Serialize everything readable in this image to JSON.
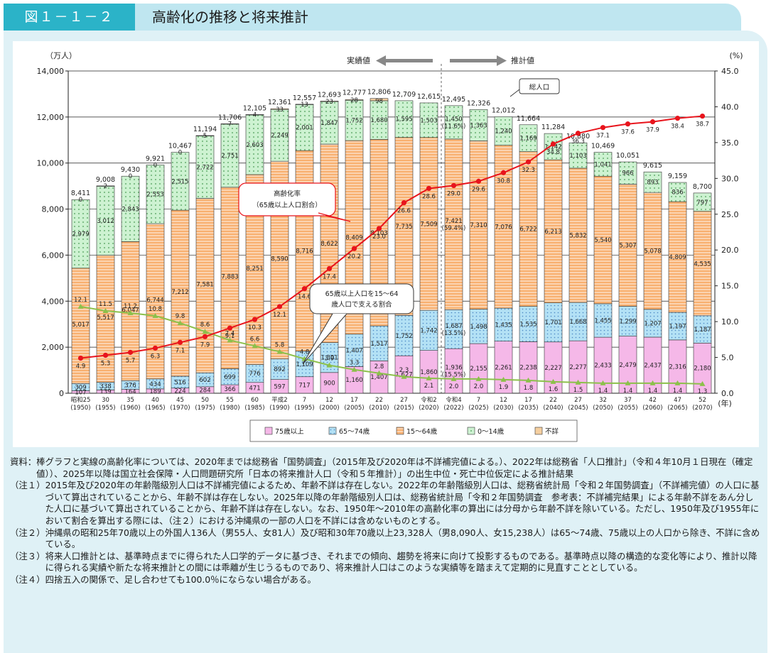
{
  "header": {
    "figure_label": "図１－１－２",
    "title": "高齢化の推移と将来推計"
  },
  "chart_data": {
    "type": "bar",
    "title": "高齢化の推移と将来推計",
    "y_left_unit": "（万人）",
    "y_right_unit": "(%)",
    "x_unit": "(年)",
    "ylim_left": [
      0,
      14000
    ],
    "ylim_right": [
      0,
      45
    ],
    "yticks_left": [
      "0",
      "2,000",
      "4,000",
      "6,000",
      "8,000",
      "10,000",
      "12,000",
      "14,000"
    ],
    "yticks_right": [
      "0.0",
      "5.0",
      "10.0",
      "15.0",
      "20.0",
      "25.0",
      "30.0",
      "35.0",
      "40.0",
      "45.0"
    ],
    "categories_era": [
      "昭和25",
      "30",
      "35",
      "40",
      "45",
      "50",
      "55",
      "60",
      "平成2",
      "7",
      "12",
      "17",
      "22",
      "27",
      "令和2",
      "令和4",
      "7",
      "12",
      "17",
      "22",
      "27",
      "32",
      "37",
      "42",
      "47",
      "52"
    ],
    "categories_year": [
      "(1950)",
      "(1955)",
      "(1960)",
      "(1965)",
      "(1970)",
      "(1975)",
      "(1980)",
      "(1985)",
      "(1990)",
      "(1995)",
      "(2000)",
      "(2005)",
      "(2010)",
      "(2015)",
      "(2020)",
      "(2022)",
      "(2025)",
      "(2030)",
      "(2035)",
      "(2040)",
      "(2045)",
      "(2050)",
      "(2055)",
      "(2060)",
      "(2065)",
      "(2070)"
    ],
    "stack_order": [
      "75歳以上",
      "65～74歳",
      "15～64歳",
      "0～14歳",
      "不詳"
    ],
    "series": [
      {
        "name": "75歳以上",
        "color": "#f5b8e8",
        "values": [
          107,
          139,
          164,
          189,
          224,
          284,
          366,
          471,
          597,
          717,
          900,
          1160,
          1407,
          1627,
          1860,
          1936,
          2155,
          2261,
          2238,
          2227,
          2277,
          2433,
          2479,
          2437,
          2316,
          2180
        ],
        "labels": [
          "107",
          "139",
          "164",
          "189",
          "224",
          "284",
          "366",
          "471",
          "597",
          "717",
          "900",
          "1,160",
          "1,407",
          "1,627",
          "1,860",
          "1,936\n(15.5%)",
          "2,155",
          "2,261",
          "2,238",
          "2,227",
          "2,277",
          "2,433",
          "2,479",
          "2,437",
          "2,316",
          "2,180"
        ]
      },
      {
        "name": "65～74歳",
        "color": "#a9dcf2",
        "values": [
          309,
          338,
          376,
          434,
          516,
          602,
          699,
          776,
          892,
          1109,
          1301,
          1407,
          1517,
          1752,
          1742,
          1687,
          1498,
          1435,
          1535,
          1701,
          1668,
          1455,
          1299,
          1207,
          1197,
          1187
        ],
        "labels": [
          "309",
          "338",
          "376",
          "434",
          "516",
          "602",
          "699",
          "776",
          "892",
          "1,109",
          "1,301",
          "1,407",
          "1,517",
          "1,752",
          "1,742",
          "1,687\n(13.5%)",
          "1,498",
          "1,435",
          "1,535",
          "1,701",
          "1,668",
          "1,455",
          "1,299",
          "1,207",
          "1,197",
          "1,187"
        ]
      },
      {
        "name": "15～64歳",
        "color": "#f7ad6c",
        "values": [
          5017,
          5517,
          6047,
          6744,
          7212,
          7581,
          7883,
          8251,
          8590,
          8716,
          8622,
          8409,
          8103,
          7735,
          7509,
          7421,
          7310,
          7076,
          6722,
          6213,
          5832,
          5540,
          5307,
          5078,
          4809,
          4535
        ],
        "labels": [
          "5,017",
          "5,517",
          "6,047",
          "6,744",
          "7,212",
          "7,581",
          "7,883",
          "8,251",
          "8,590",
          "8,716",
          "8,622",
          "8,409",
          "8,103",
          "7,735",
          "7,509",
          "7,421\n(59.4%)",
          "7,310",
          "7,076",
          "6,722",
          "6,213",
          "5,832",
          "5,540",
          "5,307",
          "5,078",
          "4,809",
          "4,535"
        ]
      },
      {
        "name": "0～14歳",
        "color": "#c8f0cc",
        "values": [
          2979,
          3012,
          2843,
          2553,
          2515,
          2722,
          2751,
          2603,
          2249,
          2001,
          1847,
          1752,
          1680,
          1595,
          1503,
          1450,
          1363,
          1240,
          1169,
          1142,
          1103,
          1041,
          966,
          893,
          836,
          797
        ],
        "labels": [
          "2,979",
          "3,012",
          "2,843",
          "2,553",
          "2,515",
          "2,722",
          "2,751",
          "2,603",
          "2,249",
          "2,001",
          "1,847",
          "1,752",
          "1,680",
          "1,595",
          "1,503",
          "1,450\n(11.6%)",
          "1,363",
          "1,240",
          "1,169",
          "1,142",
          "1,103",
          "1,041",
          "966",
          "893",
          "836",
          "797"
        ]
      },
      {
        "name": "不詳",
        "color": "#f5cfa0",
        "values": [
          0,
          2,
          0,
          0,
          0,
          5,
          7,
          4,
          33,
          13,
          23,
          28,
          98,
          0,
          0,
          0,
          0,
          0,
          0,
          0,
          0,
          0,
          0,
          0,
          0,
          0
        ],
        "labels": [
          "0",
          "2",
          "0",
          "0",
          "0",
          "5",
          "7",
          "4",
          "33",
          "13",
          "23",
          "28",
          "98",
          "",
          "",
          "",
          "",
          "",
          "",
          "",
          "",
          "",
          "",
          "",
          "",
          ""
        ]
      }
    ],
    "totals": [
      8411,
      9008,
      9430,
      9921,
      10467,
      11194,
      11706,
      12105,
      12361,
      12557,
      12693,
      12777,
      12806,
      12709,
      12615,
      12495,
      12326,
      12012,
      11664,
      11284,
      10880,
      10469,
      10051,
      9615,
      9159,
      8700
    ],
    "totals_labels": [
      "8,411",
      "9,008",
      "9,430",
      "9,921",
      "10,467",
      "11,194",
      "11,706",
      "12,105",
      "12,361",
      "12,557",
      "12,693",
      "12,777",
      "12,806",
      "12,709",
      "12,615",
      "12,495",
      "12,326",
      "12,012",
      "11,664",
      "11,284",
      "10,880",
      "10,469",
      "10,051",
      "9,615",
      "9,159",
      "8,700"
    ],
    "aging_rate": {
      "color": "#e8141c",
      "values": [
        4.9,
        5.3,
        5.7,
        6.3,
        7.1,
        7.9,
        9.1,
        10.3,
        12.1,
        14.6,
        17.4,
        20.2,
        23.0,
        26.6,
        28.6,
        29.0,
        29.6,
        30.8,
        32.3,
        34.8,
        36.3,
        37.1,
        37.6,
        37.9,
        38.4,
        38.7
      ],
      "labels": [
        "4.9",
        "5.3",
        "5.7",
        "6.3",
        "7.1",
        "7.9",
        "9.1",
        "10.3",
        "12.1",
        "14.6",
        "17.4",
        "20.2",
        "23.0",
        "26.6",
        "28.6",
        "29.0",
        "29.6",
        "30.8",
        "32.3",
        "34.8",
        "36.3",
        "37.1",
        "37.6",
        "37.9",
        "38.4",
        "38.7"
      ]
    },
    "support_ratio": {
      "color": "#8cc04b",
      "values": [
        12.1,
        11.5,
        11.2,
        10.8,
        9.8,
        8.6,
        7.4,
        6.6,
        5.8,
        4.8,
        3.9,
        3.3,
        2.8,
        2.3,
        2.1,
        2.0,
        2.0,
        1.9,
        1.8,
        1.6,
        1.5,
        1.4,
        1.4,
        1.4,
        1.4,
        1.3
      ],
      "labels": [
        "12.1",
        "11.5",
        "11.2",
        "10.8",
        "9.8",
        "8.6",
        "7.4",
        "6.6",
        "5.8",
        "4.8",
        "3.9",
        "3.3",
        "2.8",
        "2.3",
        "2.1",
        "2.0",
        "2.0",
        "1.9",
        "1.8",
        "1.6",
        "1.5",
        "1.4",
        "1.4",
        "1.4",
        "1.4",
        "1.3"
      ]
    },
    "annotations": {
      "actual": "実績値",
      "projection": "推計値",
      "total_population": "総人口",
      "aging_rate_label": [
        "高齢化率",
        "（65歳以上人口割合）"
      ],
      "support_label": [
        "65歳以上人口を15～64",
        "歳人口で支える割合"
      ]
    },
    "legend": [
      "75歳以上",
      "65～74歳",
      "15～64歳",
      "0～14歳",
      "不詳"
    ],
    "legend_position": "bottom-center",
    "grid": true
  },
  "notes": [
    {
      "label": "資料：",
      "text": "棒グラフと実線の高齢化率については、2020年までは総務省「国勢調査」（2015年及び2020年は不詳補完値による。）、2022年は総務省「人口推計」（令和４年10月１日現在（確定値））、2025年以降は国立社会保障・人口問題研究所「日本の将来推計人口（令和５年推計）」の出生中位・死亡中位仮定による推計結果"
    },
    {
      "label": "（注１）",
      "text": "2015年及び2020年の年齢階級別人口は不詳補完値によるため、年齢不詳は存在しない。2022年の年齢階級別人口は、総務省統計局「令和２年国勢調査」（不詳補完値）の人口に基づいて算出されていることから、年齢不詳は存在しない。2025年以降の年齢階級別人口は、総務省統計局「令和２年国勢調査　参考表：不詳補完結果」による年齢不詳をあん分した人口に基づいて算出されていることから、年齢不詳は存在しない。なお、1950年～2010年の高齢化率の算出には分母から年齢不詳を除いている。ただし、1950年及び1955年において割合を算出する際には、（注２）における沖縄県の一部の人口を不詳には含めないものとする。"
    },
    {
      "label": "（注２）",
      "text": "沖縄県の昭和25年70歳以上の外国人136人（男55人、女81人）及び昭和30年70歳以上23,328人（男8,090人、女15,238人）は65～74歳、75歳以上の人口から除き、不詳に含めている。"
    },
    {
      "label": "（注３）",
      "text": "将来人口推計とは、基準時点までに得られた人口学的データに基づき、それまでの傾向、趨勢を将来に向けて投影するものである。基準時点以降の構造的な変化等により、推計以降に得られる実績や新たな将来推計との間には乖離が生じうるものであり、将来推計人口はこのような実績等を踏まえて定期的に見直すこととしている。"
    },
    {
      "label": "（注４）",
      "text": "四捨五入の関係で、足し合わせても100.0％にならない場合がある。"
    }
  ]
}
